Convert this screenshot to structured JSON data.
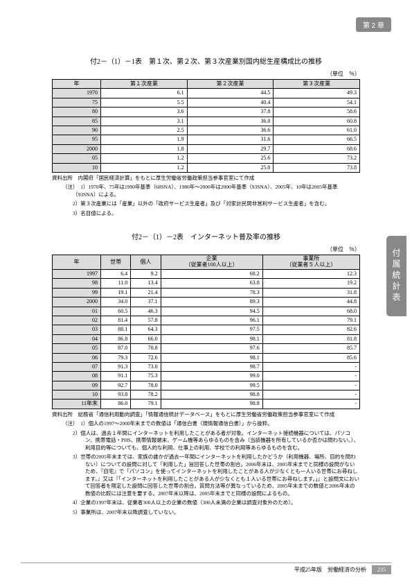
{
  "chapter_badge": "第 2 章",
  "side_tab": "付属統計表",
  "table1": {
    "title": "付2－（1）－1表　第１次、第２次、第３次産業別国内総生産構成比の推移",
    "unit": "（単位　％）",
    "headers": [
      "年",
      "第１次産業",
      "第２次産業",
      "第３次産業"
    ],
    "rows": [
      [
        "1970",
        "6.1",
        "44.5",
        "49.3"
      ],
      [
        "75",
        "5.5",
        "40.4",
        "54.1"
      ],
      [
        "80",
        "3.6",
        "37.8",
        "58.6"
      ],
      [
        "85",
        "3.1",
        "36.0",
        "60.8"
      ],
      [
        "90",
        "2.5",
        "36.6",
        "61.0"
      ],
      [
        "95",
        "1.9",
        "31.6",
        "66.5"
      ],
      [
        "2000",
        "1.8",
        "29.7",
        "68.6"
      ],
      [
        "05",
        "1.2",
        "25.6",
        "73.2"
      ],
      [
        "10",
        "1.2",
        "25.0",
        "73.8"
      ]
    ],
    "source": "資料出所　内閣府「国民経済計算」をもとに厚生労働省労働政策担当参事官室にて作成",
    "notes": [
      "（注）　1）1970年、75年は1990年基準（68SNA）、1980年〜2000年は2000年基準（93SNA）、2005年、10年は2005年基準（93SNA）による。",
      "2）第３次産業には「産業」以外の「政府サービス生産者」及び「対家計民間非営利サービス生産者」を含む。",
      "3）名目値による。"
    ]
  },
  "table2": {
    "title": "付2－（1）－2表　インターネット普及率の推移",
    "unit": "（単位　％）",
    "headers": [
      "年",
      "世帯",
      "個人",
      "企業",
      "事業所"
    ],
    "subheaders": [
      "",
      "",
      "",
      "（従業者100人以上）",
      "（従業者５人以上）"
    ],
    "rows": [
      [
        "1997",
        "6.4",
        "9.2",
        "68.2",
        "12.3"
      ],
      [
        "98",
        "11.0",
        "13.4",
        "63.8",
        "19.2"
      ],
      [
        "99",
        "19.1",
        "21.4",
        "78.3",
        "31.8"
      ],
      [
        "2000",
        "34.0",
        "37.1",
        "89.3",
        "44.8"
      ],
      [
        "01",
        "60.5",
        "46.3",
        "94.5",
        "68.0"
      ],
      [
        "02",
        "81.4",
        "57.8",
        "96.1",
        "79.1"
      ],
      [
        "03",
        "88.1",
        "64.3",
        "97.5",
        "82.6"
      ],
      [
        "04",
        "86.8",
        "66.0",
        "98.1",
        "81.8"
      ],
      [
        "05",
        "87.0",
        "70.8",
        "97.6",
        "85.7"
      ],
      [
        "06",
        "79.3",
        "72.6",
        "98.1",
        "85.6"
      ],
      [
        "07",
        "91.3",
        "73.0",
        "98.7",
        "-"
      ],
      [
        "08",
        "91.1",
        "75.3",
        "99.0",
        "-"
      ],
      [
        "09",
        "92.7",
        "78.0",
        "99.5",
        "-"
      ],
      [
        "10",
        "93.8",
        "78.2",
        "98.8",
        "-"
      ],
      [
        "11年末",
        "86.0",
        "79.1",
        "98.8",
        "-"
      ]
    ],
    "source": "資料出所　総務省「通信利用動向調査」「情報通信統計データベース」をもとに厚生労働省労働政策担当参事官室にて作成",
    "notes": [
      "（注）　1）個人の1997〜2000年末までの数値は「通信白書（現情報通信白書）」から抜粋。",
      "2）個人は、過去１年間にインターネットを利用したことがある者が対象。インターネット接続機器については、パソコン、携帯電話・PHS、携帯情報端末、ゲーム機等あらゆるものを含み（当該機器を所有しているか否かは問わない。）、利用目的等についても、個人的な利用、仕事上の利用、学校での利用等あらゆるものを含む。",
      "3）世帯の2005年末までは、家族の誰かが過去一年間にインターネットを利用したかどうか（利用機器、場所、目的を問わない）についての設問に対して「利用した」旨回答した世帯の割合。2006年末は、2005年末までと同様の設問がないため、『自宅』で「パソコン」を使ってインターネットを利用したことがある人が少なくとも一人いる世帯にお尋ねします。』又は『「インターネットを利用したことがある人が少なくとも１人いる世帯にお尋ねします。」』と設問文において回答者を限定した設問に回答した世帯の割合。質問方法等が異なっているため、2005年末までの数値と2006年末の数値の比較には注意を要する。2007年末以降は、2005年末までと同様の設問によるもの。",
      "4）企業の1997年末は、従業者300人以上の企業の数値（300人未満の企業は調査対象外のため）。",
      "5）事業所は、2007年末以降調査していない。"
    ]
  },
  "footer": {
    "text": "平成25年版　労働経済の分析",
    "page": "235"
  }
}
